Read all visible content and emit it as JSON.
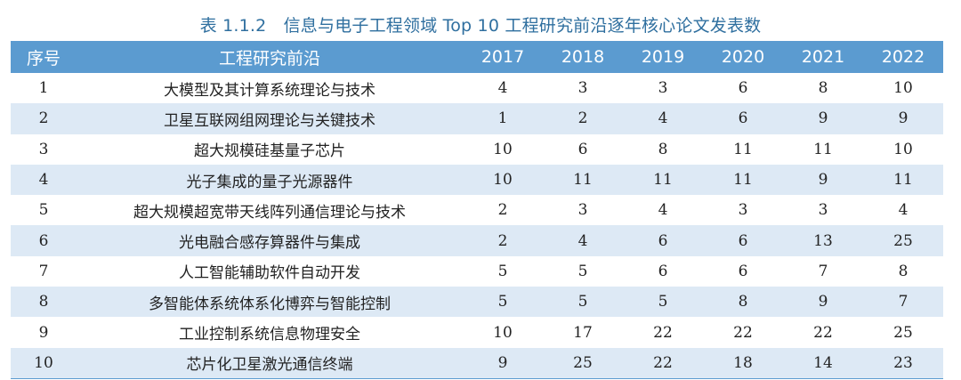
{
  "caption": "表 1.1.2　信息与电子工程领域 Top 10 工程研究前沿逐年核心论文发表数",
  "headers": [
    "序号",
    "工程研究前沿",
    "2017",
    "2018",
    "2019",
    "2020",
    "2021",
    "2022"
  ],
  "rows": [
    {
      "id": "1",
      "name": "大模型及其计算系统理论与技术",
      "values": [
        "4",
        "3",
        "3",
        "6",
        "8",
        "10"
      ]
    },
    {
      "id": "2",
      "name": "卫星互联网组网理论与关键技术",
      "values": [
        "1",
        "2",
        "4",
        "6",
        "9",
        "9"
      ]
    },
    {
      "id": "3",
      "name": "超大规模硅基量子芯片",
      "values": [
        "10",
        "6",
        "8",
        "11",
        "11",
        "10"
      ]
    },
    {
      "id": "4",
      "name": "光子集成的量子光源器件",
      "values": [
        "10",
        "11",
        "11",
        "11",
        "9",
        "11"
      ]
    },
    {
      "id": "5",
      "name": "超大规模超宽带天线阵列通信理论与技术",
      "values": [
        "2",
        "3",
        "4",
        "3",
        "3",
        "4"
      ]
    },
    {
      "id": "6",
      "name": "光电融合感存算器件与集成",
      "values": [
        "2",
        "4",
        "6",
        "6",
        "13",
        "25"
      ]
    },
    {
      "id": "7",
      "name": "人工智能辅助软件自动开发",
      "values": [
        "5",
        "5",
        "6",
        "6",
        "7",
        "8"
      ]
    },
    {
      "id": "8",
      "name": "多智能体系统体系化博弈与智能控制",
      "values": [
        "5",
        "5",
        "5",
        "8",
        "9",
        "7"
      ]
    },
    {
      "id": "9",
      "name": "工业控制系统信息物理安全",
      "values": [
        "10",
        "17",
        "22",
        "22",
        "22",
        "25"
      ]
    },
    {
      "id": "10",
      "name": "芯片化卫星激光通信终端",
      "values": [
        "9",
        "25",
        "22",
        "18",
        "14",
        "23"
      ]
    }
  ]
}
